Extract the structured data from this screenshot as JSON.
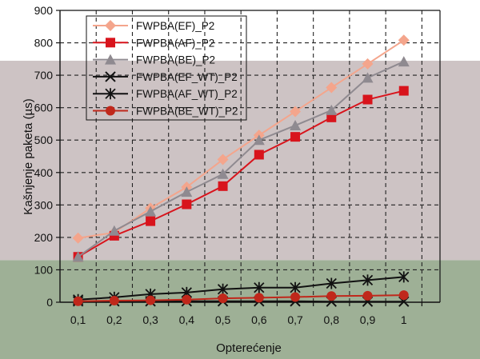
{
  "chart_data": {
    "type": "line",
    "xlabel": "Opterećenje",
    "ylabel": "Kašnjenje paketa (µs)",
    "ylim": [
      0,
      900
    ],
    "yticks": [
      0,
      100,
      200,
      300,
      400,
      500,
      600,
      700,
      800,
      900
    ],
    "categories": [
      "0,1",
      "0,2",
      "0,3",
      "0,4",
      "0,5",
      "0,6",
      "0,7",
      "0,8",
      "0,9",
      "1"
    ],
    "x": [
      0.1,
      0.2,
      0.3,
      0.4,
      0.5,
      0.6,
      0.7,
      0.8,
      0.9,
      1.0
    ],
    "grid": true,
    "legend_position": "top-left",
    "background_bands": [
      {
        "from": 0,
        "to": 130,
        "color": "#9eb096"
      },
      {
        "from": 130,
        "to": 745,
        "color": "#cdc3c4"
      },
      {
        "from": 745,
        "to": 900,
        "color": "#ffffff"
      }
    ],
    "series": [
      {
        "name": "FWPBA(EF)_P2",
        "color": "#f4a58c",
        "marker": "diamond",
        "values": [
          198,
          215,
          290,
          355,
          440,
          515,
          588,
          662,
          735,
          808
        ]
      },
      {
        "name": "FWPBA(AF)_P2",
        "color": "#d8141c",
        "marker": "square",
        "values": [
          140,
          205,
          250,
          302,
          358,
          455,
          510,
          570,
          625,
          652
        ]
      },
      {
        "name": "FWPBA(BE)_P2",
        "color": "#8f8a90",
        "marker": "triangle",
        "values": [
          140,
          220,
          280,
          340,
          395,
          500,
          545,
          592,
          692,
          742
        ]
      },
      {
        "name": "FWPBA(EF_WT)_P2",
        "color": "#111111",
        "marker": "x",
        "values": [
          3,
          3,
          3,
          3,
          3,
          3,
          3,
          2,
          2,
          2
        ]
      },
      {
        "name": "FWPBA(AF_WT)_P2",
        "color": "#111111",
        "marker": "star",
        "values": [
          8,
          15,
          25,
          30,
          40,
          45,
          45,
          58,
          68,
          78
        ]
      },
      {
        "name": "FWPBA(BE_WT)_P2",
        "color": "#c0281b",
        "marker": "circle",
        "values": [
          3,
          5,
          6,
          8,
          12,
          14,
          16,
          19,
          20,
          22
        ]
      }
    ]
  }
}
